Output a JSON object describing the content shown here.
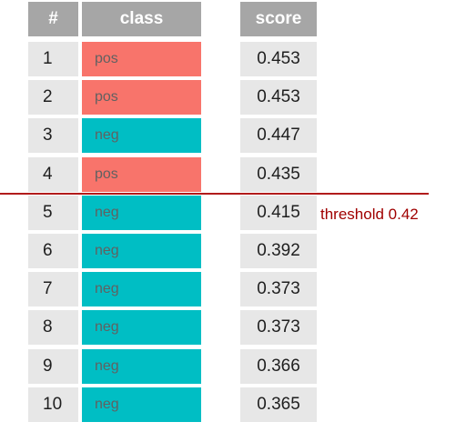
{
  "headers": {
    "rank": "#",
    "class": "class",
    "score": "score"
  },
  "colors": {
    "pos": "#f8746b",
    "neg": "#00bec4",
    "header": "#a6a6a6",
    "cell": "#e7e7e7",
    "threshold": "#b11b1b"
  },
  "rows": [
    {
      "rank": "1",
      "class": "pos",
      "score": "0.453"
    },
    {
      "rank": "2",
      "class": "pos",
      "score": "0.453"
    },
    {
      "rank": "3",
      "class": "neg",
      "score": "0.447"
    },
    {
      "rank": "4",
      "class": "pos",
      "score": "0.435"
    },
    {
      "rank": "5",
      "class": "neg",
      "score": "0.415"
    },
    {
      "rank": "6",
      "class": "neg",
      "score": "0.392"
    },
    {
      "rank": "7",
      "class": "neg",
      "score": "0.373"
    },
    {
      "rank": "8",
      "class": "neg",
      "score": "0.373"
    },
    {
      "rank": "9",
      "class": "neg",
      "score": "0.366"
    },
    {
      "rank": "10",
      "class": "neg",
      "score": "0.365"
    }
  ],
  "threshold": {
    "label": "threshold 0.42",
    "value": 0.42
  }
}
